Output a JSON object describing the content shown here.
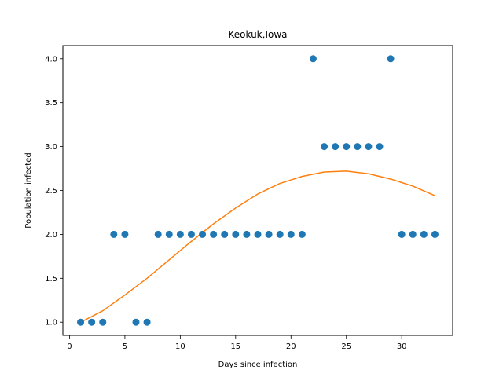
{
  "chart_data": {
    "type": "scatter",
    "title": "Keokuk,Iowa",
    "xlabel": "Days since infection",
    "ylabel": "Population infected",
    "xlim": [
      -0.6,
      34.6
    ],
    "ylim": [
      0.85,
      4.15
    ],
    "xticks": [
      0,
      5,
      10,
      15,
      20,
      25,
      30
    ],
    "yticks": [
      1.0,
      1.5,
      2.0,
      2.5,
      3.0,
      3.5,
      4.0
    ],
    "xtick_labels": [
      "0",
      "5",
      "10",
      "15",
      "20",
      "25",
      "30"
    ],
    "ytick_labels": [
      "1.0",
      "1.5",
      "2.0",
      "2.5",
      "3.0",
      "3.5",
      "4.0"
    ],
    "grid": false,
    "series": [
      {
        "kind": "scatter",
        "color": "#1f77b4",
        "x": [
          1,
          2,
          3,
          4,
          5,
          6,
          7,
          8,
          9,
          10,
          11,
          12,
          13,
          14,
          15,
          16,
          17,
          18,
          19,
          20,
          21,
          22,
          23,
          24,
          25,
          26,
          27,
          28,
          29,
          30,
          31,
          32,
          33
        ],
        "y": [
          1,
          1,
          1,
          2,
          2,
          1,
          1,
          2,
          2,
          2,
          2,
          2,
          2,
          2,
          2,
          2,
          2,
          2,
          2,
          2,
          2,
          4,
          3,
          3,
          3,
          3,
          3,
          3,
          4,
          2,
          2,
          2,
          2
        ]
      },
      {
        "kind": "line",
        "color": "#ff7f0e",
        "x": [
          1,
          3,
          5,
          7,
          9,
          11,
          13,
          15,
          17,
          19,
          21,
          23,
          25,
          27,
          29,
          31,
          33
        ],
        "y": [
          1.0,
          1.13,
          1.31,
          1.5,
          1.71,
          1.92,
          2.12,
          2.3,
          2.46,
          2.58,
          2.66,
          2.71,
          2.72,
          2.69,
          2.63,
          2.55,
          2.44
        ]
      }
    ]
  }
}
